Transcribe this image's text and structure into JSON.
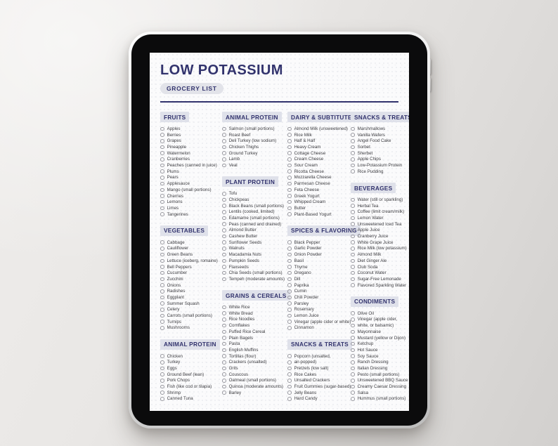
{
  "colors": {
    "accent_navy": "#32336d",
    "header_highlight": "#dfe1ea",
    "badge_bg": "#e2e3e9",
    "item_text": "#3e3e42",
    "screen_bg": "#fbfbfc",
    "bezel": "#0b0b0c"
  },
  "screen": {
    "title": "LOW POTASSIUM",
    "badge": "GROCERY LIST",
    "columns": [
      {
        "sections": [
          {
            "header": "FRUITS",
            "items": [
              "Apples",
              "Berries",
              "Grapes",
              "Pineapple",
              "Watermelon",
              "Cranberries",
              "Peaches (canned in juice)",
              "Plums",
              "Pears",
              "Applesauce",
              "Mango (small portions)",
              "Cherries",
              "Lemons",
              "Limes",
              "Tangerines"
            ]
          },
          {
            "header": "VEGETABLES",
            "items": [
              "Cabbage",
              "Cauliflower",
              "Green Beans",
              "Lettuce (iceberg, romaine)",
              "Bell Peppers",
              "Cucumber",
              "Zucchini",
              "Onions",
              "Radishes",
              "Eggplant",
              "Summer Squash",
              "Celery",
              "Carrots (small portions)",
              "Turnips",
              "Mushrooms"
            ]
          },
          {
            "header": "ANIMAL PROTEIN",
            "items": [
              "Chicken",
              "Turkey",
              "Eggs",
              "Ground Beef (lean)",
              "Pork Chops",
              "Fish (like cod or tilapia)",
              "Shrimp",
              "Canned Tuna"
            ]
          }
        ]
      },
      {
        "sections": [
          {
            "header": "ANIMAL PROTEIN",
            "items": [
              "Salmon (small portions)",
              "Roast Beef",
              "Deli Turkey (low sodium)",
              "Chicken Thighs",
              "Ground Turkey",
              "Lamb",
              "Veal"
            ]
          },
          {
            "header": "PLANT PROTEIN",
            "items": [
              "Tofu",
              "Chickpeas",
              "Black Beans (small portions)",
              "Lentils (cooked, limited)",
              "Edamame (small portions)",
              "Peas (canned and drained)",
              "Almond Butter",
              "Cashew Butter",
              "Sunflower Seeds",
              "Walnuts",
              "Macadamia Nuts",
              "Pumpkin Seeds",
              "Flaxseeds",
              "Chia Seeds (small portions)",
              "Tempeh (moderate amounts)"
            ]
          },
          {
            "header": "GRAINS & CEREALS",
            "items": [
              "White Rice",
              "White Bread",
              "Rice Noodles",
              "Cornflakes",
              "Puffed Rice Cereal",
              "Plain Bagels",
              "Pasta",
              "English Muffins",
              "Tortillas (flour)",
              "Crackers (unsalted)",
              "Grits",
              "Couscous",
              "Oatmeal (small portions)",
              "Quinoa (moderate amounts)",
              "Barley"
            ]
          }
        ]
      },
      {
        "sections": [
          {
            "header": "DAIRY & SUBTITUTES",
            "items": [
              "Almond Milk (unsweetened)",
              "Rice Milk",
              "Half & Half",
              "Heavy Cream",
              "Cottage Cheese",
              "Cream Cheese",
              "Sour Cream",
              "Ricotta Cheese",
              "Mozzarella Cheese",
              "Parmesan Cheese",
              "Feta Cheese",
              "Greek Yogurt",
              "Whipped Cream",
              "Butter",
              "Plant-Based Yogurt"
            ]
          },
          {
            "header": "SPICES & FLAVORING",
            "items": [
              "Black Pepper",
              "Garlic Powder",
              "Onion Powder",
              "Basil",
              "Thyme",
              "Oregano",
              "Dill",
              "Paprika",
              "Cumin",
              "Chili Powder",
              "Parsley",
              "Rosemary",
              "Lemon Juice",
              "Vinegar (apple cider or white)",
              "Cinnamon"
            ]
          },
          {
            "header": "SNACKS & TREATS",
            "items": [
              "Popcorn (unsalted,",
              "air-popped)",
              "Pretzels (low salt)",
              "Rice Cakes",
              "Unsalted Crackers",
              "Fruit Gummies (sugar-based)",
              "Jelly Beans",
              "Hard Candy"
            ]
          }
        ]
      },
      {
        "sections": [
          {
            "header": "SNACKS & TREATS",
            "items": [
              "Marshmallows",
              "Vanilla Wafers",
              "Angel Food Cake",
              "Sorbet",
              "Sherbet",
              "Apple Chips",
              "Low-Potassium Protein",
              "Rice Pudding"
            ]
          },
          {
            "header": "BEVERAGES",
            "items": [
              "Water (still or sparkling)",
              "Herbal Tea",
              "Coffee (limit cream/milk)",
              "Lemon Water",
              "Unsweetened Iced Tea",
              "Apple Juice",
              "Cranberry Juice",
              "White Grape Juice",
              "Rice Milk (low potassium)",
              "Almond Milk",
              "Diet Ginger Ale",
              "Club Soda",
              "Coconut Water",
              "Sugar-Free Lemonade",
              "Flavored Sparkling Water"
            ]
          },
          {
            "header": "CONDIMENTS",
            "items": [
              "Olive Oil",
              "Vinegar (apple cider,",
              "white, or balsamic)",
              "Mayonnaise",
              "Mustard (yellow or Dijon)",
              "Ketchup",
              "Hot Sauce",
              "Soy Sauce",
              "Ranch Dressing",
              "Italian Dressing",
              "Pesto (small portions)",
              "Unsweetened BBQ Sauce",
              "Creamy Caesar Dressing",
              "Salsa",
              "Hummus (small portions)"
            ]
          }
        ]
      }
    ]
  }
}
